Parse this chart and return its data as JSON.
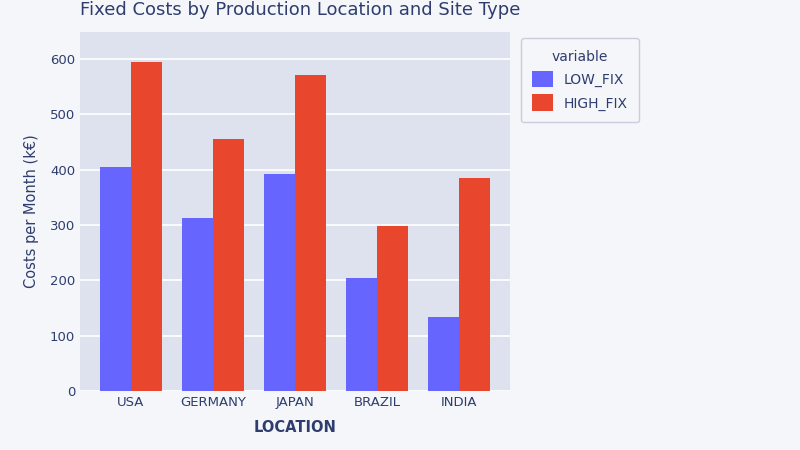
{
  "title": "Fixed Costs by Production Location and Site Type",
  "locations": [
    "USA",
    "GERMANY",
    "JAPAN",
    "BRAZIL",
    "INDIA"
  ],
  "low_fix": [
    405,
    313,
    392,
    205,
    133
  ],
  "high_fix": [
    595,
    455,
    572,
    298,
    385
  ],
  "low_color": "#6666ff",
  "high_color": "#e8472e",
  "xlabel": "LOCATION",
  "ylabel": "Costs per Month (k€)",
  "legend_title": "variable",
  "legend_labels": [
    "LOW_FIX",
    "HIGH_FIX"
  ],
  "ylim": [
    0,
    650
  ],
  "yticks": [
    0,
    100,
    200,
    300,
    400,
    500,
    600
  ],
  "plot_bg": "#dde2ee",
  "title_color": "#2e3d6e",
  "axis_label_color": "#2e3d6e",
  "tick_color": "#2e3d6e",
  "legend_text_color": "#2e3d6e",
  "bar_width": 0.38,
  "fig_bg": "#f5f6fa"
}
